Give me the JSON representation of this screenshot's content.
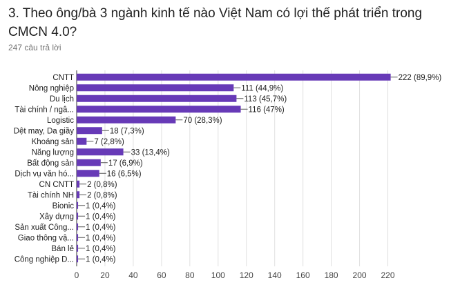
{
  "question": {
    "title": "3. Theo ông/bà 3 ngành kinh tế nào Việt Nam có lợi thế phát triển trong CMCN 4.0?",
    "response_count": "247 câu trả lời"
  },
  "colors": {
    "bar": "#673ab7",
    "grid": "#e0e0e0",
    "axis": "#333333",
    "label": "#212121",
    "tick": "#444444"
  },
  "chart_data": {
    "type": "bar",
    "orientation": "horizontal",
    "categories": [
      "CNTT",
      "Nông nghiệp",
      "Du lịch",
      "Tài chính / ngâ...",
      "Logistic",
      "Dệt may, Da giầy",
      "Khoáng sản",
      "Năng lượng",
      "Bất động sản",
      "Dịch vụ văn hó...",
      "CN CNTT",
      "Tài chính NH",
      "Bionic",
      "Xây dựng",
      "Sản xuất Công...",
      "Giao thông vậ...",
      "Bán lẻ",
      "Công nghiệp D..."
    ],
    "values": [
      222,
      111,
      113,
      116,
      70,
      18,
      7,
      33,
      17,
      16,
      2,
      2,
      1,
      1,
      1,
      1,
      1,
      1
    ],
    "data_labels": [
      "222 (89,9%)",
      "111 (44,9%)",
      "113 (45,7%)",
      "116 (47%)",
      "70 (28,3%)",
      "18 (7,3%)",
      "7 (2,8%)",
      "33 (13,4%)",
      "17 (6,9%)",
      "16 (6,5%)",
      "2 (0,8%)",
      "2 (0,8%)",
      "1 (0,4%)",
      "1 (0,4%)",
      "1 (0,4%)",
      "1 (0,4%)",
      "1 (0,4%)",
      "1 (0,4%)"
    ],
    "xlim": [
      0,
      230
    ],
    "xticks": [
      0,
      20,
      40,
      60,
      80,
      100,
      120,
      140,
      160,
      180,
      200,
      220
    ],
    "grid": true,
    "legend": "none"
  }
}
